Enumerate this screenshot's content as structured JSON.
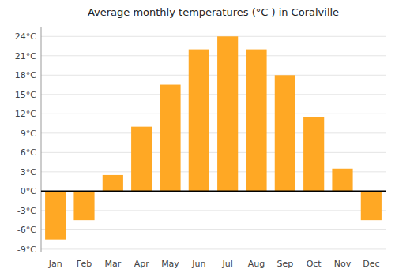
{
  "chart_data": {
    "type": "bar",
    "title": "Average monthly temperatures (°C ) in Coralville",
    "categories": [
      "Jan",
      "Feb",
      "Mar",
      "Apr",
      "May",
      "Jun",
      "Jul",
      "Aug",
      "Sep",
      "Oct",
      "Nov",
      "Dec"
    ],
    "values": [
      -7.5,
      -4.5,
      2.5,
      10.0,
      16.5,
      22.0,
      24.0,
      22.0,
      18.0,
      11.5,
      3.5,
      -4.5
    ],
    "color": "#FFA824",
    "ylim": [
      -9.5,
      25.5
    ],
    "yticks": [
      {
        "value": -9,
        "label": "-9°C"
      },
      {
        "value": -6,
        "label": "-6°C"
      },
      {
        "value": -3,
        "label": "-3°C"
      },
      {
        "value": 0,
        "label": "0°C"
      },
      {
        "value": 3,
        "label": "3°C"
      },
      {
        "value": 6,
        "label": "6°C"
      },
      {
        "value": 9,
        "label": "9°C"
      },
      {
        "value": 12,
        "label": "12°C"
      },
      {
        "value": 15,
        "label": "15°C"
      },
      {
        "value": 18,
        "label": "18°C"
      },
      {
        "value": 21,
        "label": "21°C"
      },
      {
        "value": 24,
        "label": "24°C"
      }
    ],
    "grid": true
  }
}
